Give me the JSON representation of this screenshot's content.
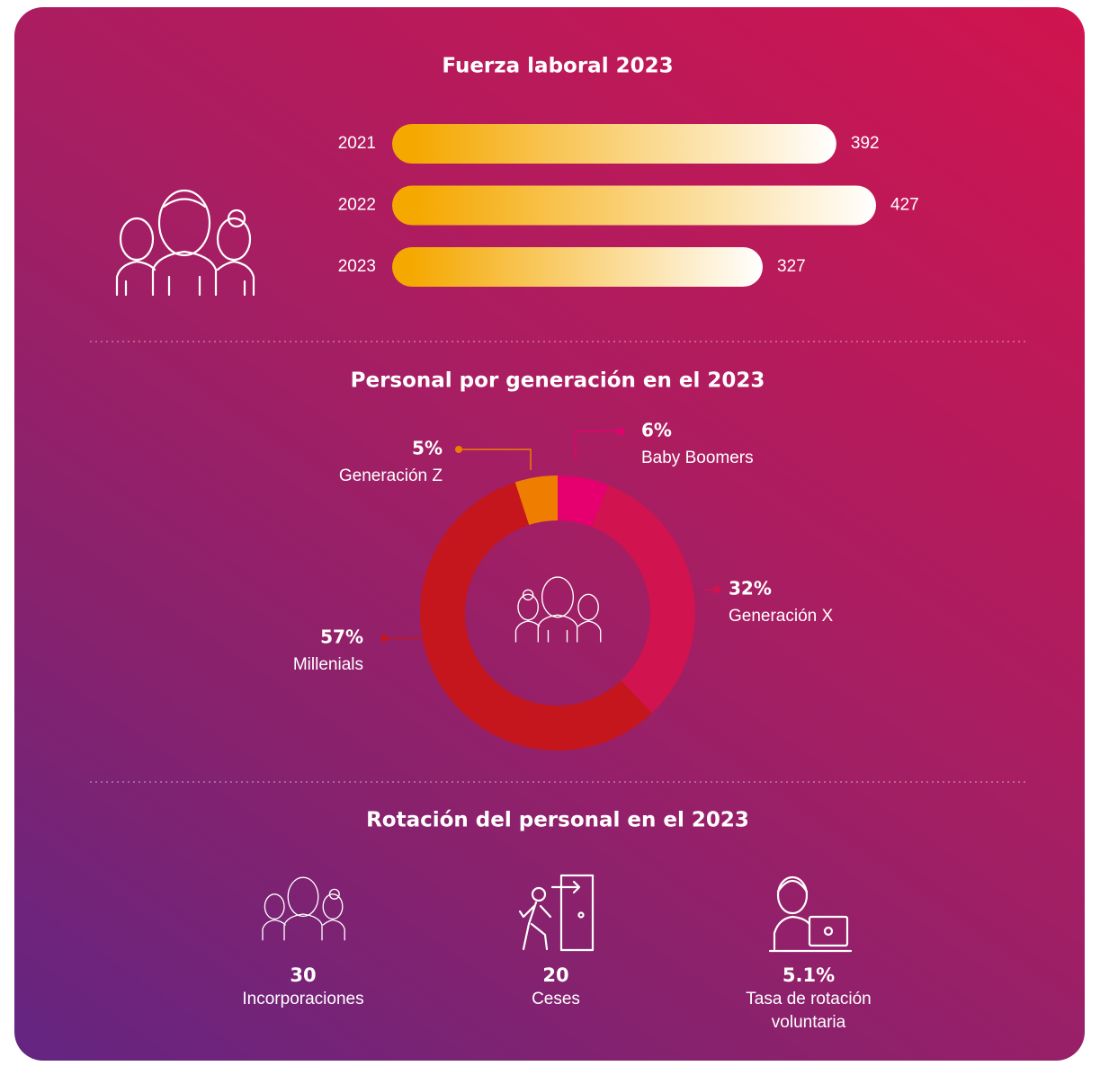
{
  "chart_data": [
    {
      "type": "bar",
      "title": "Fuerza laboral 2023",
      "orientation": "horizontal",
      "categories": [
        "2021",
        "2022",
        "2023"
      ],
      "values": [
        392,
        427,
        327
      ],
      "color": "#f5a800"
    },
    {
      "type": "pie",
      "title": "Personal por generación en el 2023",
      "categories": [
        "Baby Boomers",
        "Generación X",
        "Millenials",
        "Generación Z"
      ],
      "values": [
        6,
        32,
        57,
        5
      ],
      "value_labels": [
        "6%",
        "32%",
        "57%",
        "5%"
      ],
      "colors": [
        "#e6006f",
        "#d1134f",
        "#c4161c",
        "#ee7d00"
      ]
    }
  ],
  "rotation": {
    "title": "Rotación del personal en el 2023",
    "items": [
      {
        "value": 30,
        "name": "Incorporaciones"
      },
      {
        "value": 20,
        "name": "Ceses"
      },
      {
        "value": 5.1,
        "label": "5.1%",
        "name": "Tasa de rotación voluntaria"
      }
    ]
  }
}
